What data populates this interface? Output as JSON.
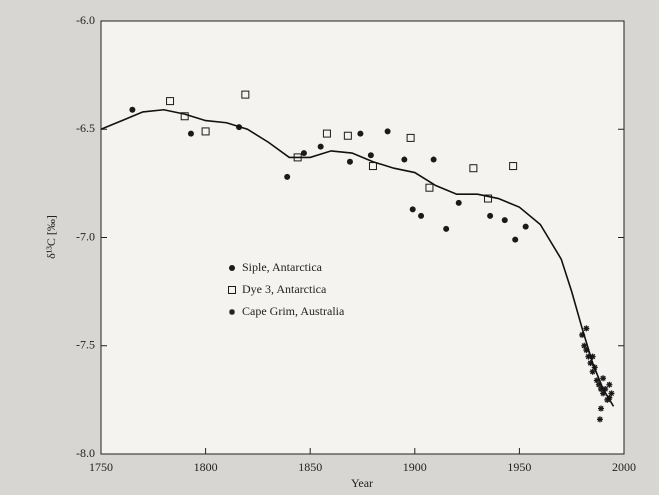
{
  "chart_data": {
    "type": "scatter",
    "xlabel": "Year",
    "ylabel": "δ¹³C [‰]",
    "xlim": [
      1750,
      2000
    ],
    "xticks": [
      1750,
      1800,
      1850,
      1900,
      1950,
      2000
    ],
    "ylim": [
      -8,
      -6
    ],
    "yticks": [
      {
        "value": -8,
        "label": "-8.0"
      },
      -7.5,
      {
        "value": -7,
        "label": "-7.0"
      },
      -6.5,
      {
        "value": -6,
        "label": "-6.0"
      }
    ],
    "legend": "lower-left",
    "series": [
      {
        "name": "Siple, Antarctica",
        "marker": "filled-circle",
        "color": "#1a1a1a",
        "x": [
          1765,
          1793,
          1816,
          1839,
          1847,
          1855,
          1869,
          1874,
          1879,
          1887,
          1895,
          1899,
          1903,
          1909,
          1915,
          1921,
          1936,
          1943,
          1948,
          1953
        ],
        "values": [
          -6.41,
          -6.52,
          -6.49,
          -6.72,
          -6.61,
          -6.58,
          -6.65,
          -6.52,
          -6.62,
          -6.51,
          -6.64,
          -6.87,
          -6.9,
          -6.64,
          -6.96,
          -6.84,
          -6.9,
          -6.92,
          -7.01,
          -6.95
        ]
      },
      {
        "name": "Dye 3, Antarctica",
        "marker": "open-square",
        "color": "#1a1a1a",
        "x": [
          1783,
          1790,
          1800,
          1819,
          1844,
          1858,
          1868,
          1880,
          1898,
          1907,
          1928,
          1935,
          1947
        ],
        "values": [
          -6.37,
          -6.44,
          -6.51,
          -6.34,
          -6.63,
          -6.52,
          -6.53,
          -6.67,
          -6.54,
          -6.77,
          -6.68,
          -6.82,
          -6.67
        ]
      },
      {
        "name": "Cape Grim, Australia",
        "marker": "star",
        "color": "#1a1a1a",
        "x": [
          1980,
          1981,
          1982,
          1983,
          1984,
          1985,
          1986,
          1987,
          1988,
          1989,
          1990,
          1991,
          1992,
          1993,
          1994,
          1989,
          1985,
          1982,
          1990,
          1993,
          1988.5
        ],
        "values": [
          -7.45,
          -7.5,
          -7.52,
          -7.55,
          -7.58,
          -7.62,
          -7.6,
          -7.66,
          -7.68,
          -7.7,
          -7.72,
          -7.7,
          -7.75,
          -7.74,
          -7.72,
          -7.79,
          -7.55,
          -7.42,
          -7.65,
          -7.68,
          -7.84
        ]
      },
      {
        "marker": "line",
        "color": "#111111",
        "x": [
          1750,
          1760,
          1770,
          1780,
          1790,
          1800,
          1810,
          1820,
          1830,
          1840,
          1850,
          1860,
          1870,
          1880,
          1890,
          1900,
          1910,
          1920,
          1930,
          1940,
          1950,
          1960,
          1970,
          1975,
          1980,
          1985,
          1990,
          1995
        ],
        "values": [
          -6.5,
          -6.46,
          -6.42,
          -6.41,
          -6.43,
          -6.46,
          -6.47,
          -6.5,
          -6.56,
          -6.63,
          -6.63,
          -6.6,
          -6.61,
          -6.65,
          -6.68,
          -6.7,
          -6.76,
          -6.8,
          -6.8,
          -6.82,
          -6.86,
          -6.94,
          -7.1,
          -7.25,
          -7.42,
          -7.58,
          -7.7,
          -7.78
        ]
      }
    ]
  }
}
